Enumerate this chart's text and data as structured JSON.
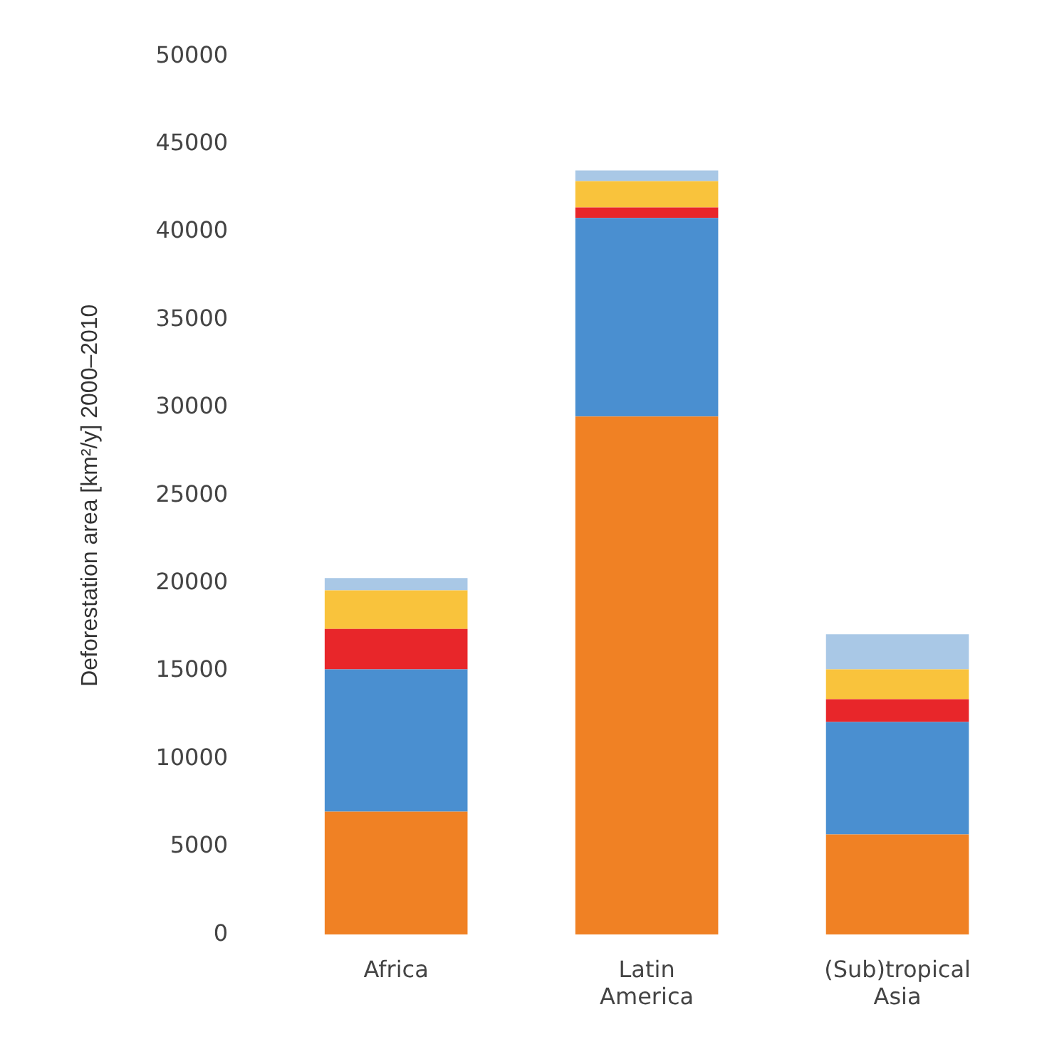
{
  "chart_data": {
    "type": "bar",
    "ylabel": "Deforestation area [km²/y] 2000–2010",
    "categories": [
      "Africa",
      "Latin America",
      "(Sub)tropical Asia"
    ],
    "stacked": true,
    "ylim": [
      0,
      50000
    ],
    "yticks": [
      0,
      5000,
      10000,
      15000,
      20000,
      25000,
      30000,
      35000,
      40000,
      45000,
      50000
    ],
    "grid": false,
    "legend": false,
    "series": [
      {
        "color": "#f08124",
        "values": [
          7000,
          29500,
          5700
        ]
      },
      {
        "color": "#4a8fd0",
        "values": [
          8100,
          11300,
          6400
        ]
      },
      {
        "color": "#e8262a",
        "values": [
          2300,
          600,
          1300
        ]
      },
      {
        "color": "#f9c33c",
        "values": [
          2200,
          1500,
          1700
        ]
      },
      {
        "color": "#a9c8e6",
        "values": [
          700,
          600,
          2000
        ]
      }
    ]
  }
}
